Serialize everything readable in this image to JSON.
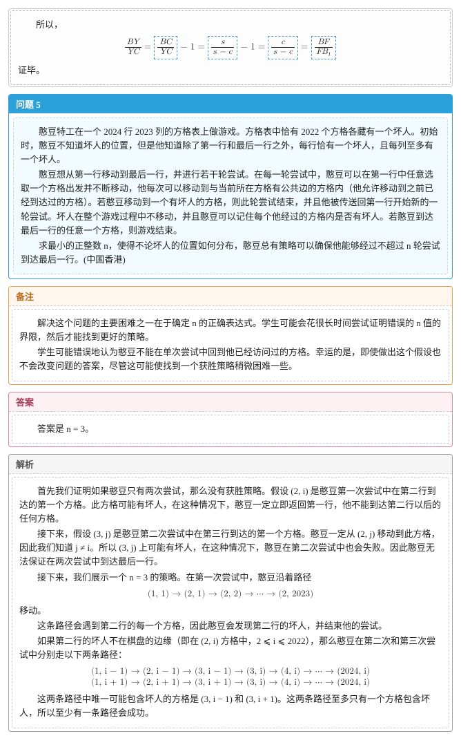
{
  "top_proof": {
    "text1": "所以，",
    "text2": "证毕。",
    "eq_lhs_num": "BY",
    "eq_lhs_den": "YC",
    "eq_a_num": "BC",
    "eq_a_den": "YC",
    "eq_b_num": "s",
    "eq_b_den": "s − c",
    "eq_c_num": "c",
    "eq_c_den": "s − c",
    "eq_rhs_num": "BF",
    "eq_rhs_den": "FB₁"
  },
  "problem": {
    "title": "问题 5",
    "p1": "憨豆特工在一个 2024 行 2023 列的方格表上做游戏。方格表中恰有 2022 个方格各藏有一个坏人。初始时，憨豆不知道坏人的位置，但是他知道除了第一行和最后一行之外，每行恰有一个坏人，且每列至多有一个坏人。",
    "p2": "憨豆想从第一行移动到最后一行，并进行若干轮尝试。在每一轮尝试中，憨豆可以在第一行中任意选取一个方格出发并不断移动，他每次可以移动到与当前所在方格有公共边的方格内（他允许移动到之前已经到达过的方格）。若憨豆移动到一个有坏人的方格，则此轮尝试结束，并且他被传送回第一行开始新的一轮尝试。坏人在整个游戏过程中不移动，并且憨豆可以记住每个他经过的方格内是否有坏人。若憨豆到达最后一行的任意一个方格，则游戏结束。",
    "p3": "求最小的正整数 n，使得不论坏人的位置如何分布，憨豆总有策略可以确保他能够经过不超过 n 轮尝试到达最后一行。(中国香港)"
  },
  "remark": {
    "title": "备注",
    "p1": "解决这个问题的主要困难之一在于确定 n 的正确表达式。学生可能会花很长时间尝试证明错误的 n 值的界限，然后才能找到更好的策略。",
    "p2": "学生可能错误地认为憨豆不能在单次尝试中回到他已经访问过的方格。幸运的是，即使做出这个假设也不会改变问题的答案，尽管这可能使找到一个获胜策略稍微困难一些。"
  },
  "answer": {
    "title": "答案",
    "text": "答案是 n = 3。"
  },
  "analysis": {
    "title": "解析",
    "p1": "首先我们证明如果憨豆只有两次尝试，那么没有获胜策略。假设 (2, i) 是憨豆第一次尝试中在第二行到达的第一个方格。此方格可能有坏人，在这种情况下，憨豆一定立即返回第一行，他不能到达第二行以后的任何方格。",
    "p2": "接下来，假设 (3, j) 是憨豆第二次尝试中在第三行到达的第一个方格。憨豆一定从 (2, j) 移动到此方格，因此我们知道 j ≠ i。所以 (3, j) 上可能有坏人，在这种情况下，憨豆在第二次尝试中也会失败。因此憨豆无法保证在两次尝试中到达最后一行。",
    "p3": "接下来，我们展示一个 n = 3 的策略。在第一次尝试中，憨豆沿着路径",
    "eq1": "(1, 1) → (2, 1) → (2, 2) → ⋯ → (2, 2023)",
    "p4": "移动。",
    "p5": "这条路径会遇到第二行的每一个方格，因此憨豆会发现第二行的坏人，并结束他的尝试。",
    "p6": "如果第二行的坏人不在棋盘的边缘（即在 (2, i) 方格中，2 ⩽ i ⩽ 2022），那么憨豆在第二次和第三次尝试中分别走以下两条路径：",
    "eq2a": "(1, i − 1) → (2, i − 1) → (3, i − 1) → (3, i) → (4, i) → ⋯ → (2024, i)",
    "eq2b": "(1, i + 1) → (2, i + 1) → (3, i + 1) → (3, i) → (4, i) → ⋯ → (2024, i)",
    "p7": "这两条路径中唯一可能包含坏人的方格是 (3, i − 1) 和 (3, i + 1)。这两条路径至多只有一个方格包含坏人，所以至少有一条路径会成功。"
  }
}
